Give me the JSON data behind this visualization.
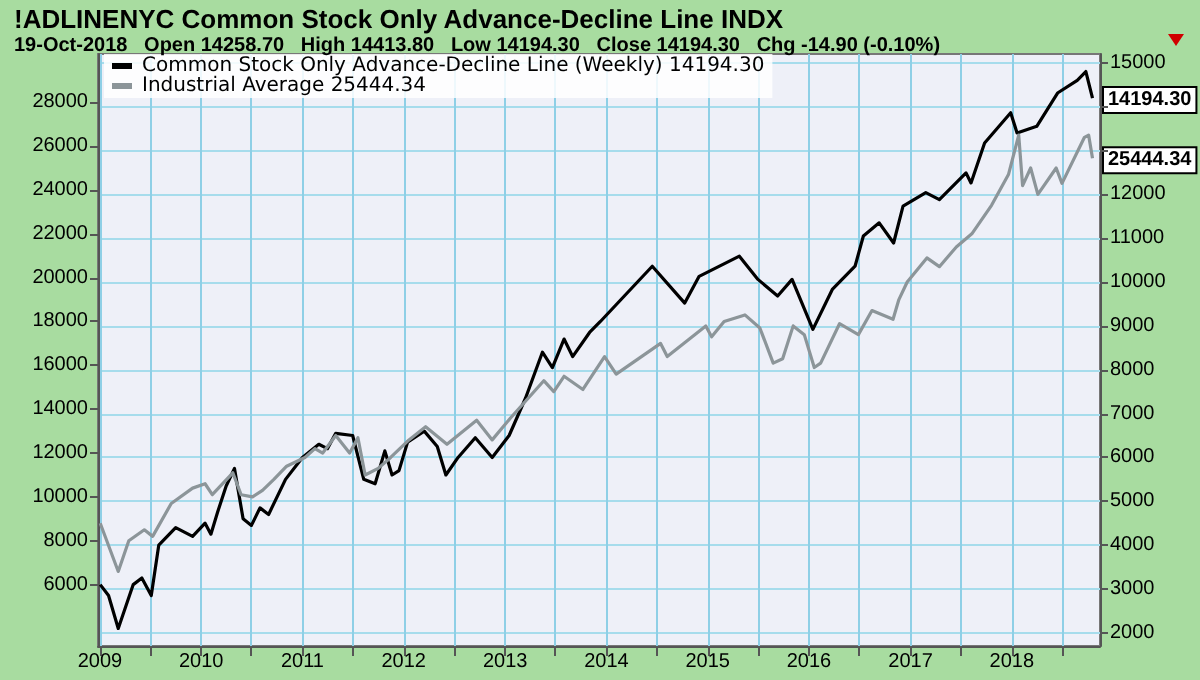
{
  "chart_data": {
    "type": "line",
    "title": "!ADLINENYC Common Stock Only Advance-Decline Line INDX",
    "subtitle": "19-Oct-2018   Open 14258.70   High 14413.80   Low 14194.30   Close 14194.30   Chg -14.90 (-0.10%)",
    "series": [
      {
        "name": "Common Stock Only Advance-Decline Line (Weekly) 14194.30",
        "color": "#000000",
        "axis": "y2",
        "x": [
          "2009-01-02",
          "2009-02-01",
          "2009-03-08",
          "2009-05-01",
          "2009-06-01",
          "2009-07-05",
          "2009-08-01",
          "2009-10-01",
          "2009-12-01",
          "2010-01-15",
          "2010-02-05",
          "2010-03-01",
          "2010-04-01",
          "2010-05-01",
          "2010-06-01",
          "2010-07-01",
          "2010-08-01",
          "2010-09-01",
          "2010-11-01",
          "2011-01-01",
          "2011-03-01",
          "2011-04-01",
          "2011-05-01",
          "2011-07-01",
          "2011-08-10",
          "2011-09-20",
          "2011-10-25",
          "2011-11-20",
          "2011-12-15",
          "2012-01-15",
          "2012-03-15",
          "2012-05-01",
          "2012-06-01",
          "2012-07-15",
          "2012-09-15",
          "2012-11-15",
          "2013-01-15",
          "2013-03-15",
          "2013-05-15",
          "2013-06-20",
          "2013-08-01",
          "2013-09-01",
          "2013-11-01",
          "2013-12-10",
          "2014-06-15",
          "2014-10-10",
          "2014-12-01",
          "2015-04-25",
          "2015-07-01",
          "2015-09-10",
          "2015-11-01",
          "2016-01-15",
          "2016-03-25",
          "2016-06-15",
          "2016-07-15",
          "2016-09-10",
          "2016-11-01",
          "2016-12-05",
          "2017-02-25",
          "2017-04-15",
          "2017-07-20",
          "2017-08-07",
          "2017-09-25",
          "2017-12-28",
          "2018-01-20",
          "2018-04-01",
          "2018-06-15",
          "2018-08-25",
          "2018-09-25",
          "2018-10-19"
        ],
        "values": [
          3100,
          2850,
          2100,
          3100,
          3250,
          2850,
          4000,
          4400,
          4200,
          4500,
          4250,
          4750,
          5350,
          5750,
          4600,
          4450,
          4850,
          4700,
          5500,
          6000,
          6300,
          6200,
          6550,
          6500,
          5500,
          5400,
          6150,
          5600,
          5700,
          6350,
          6600,
          6250,
          5600,
          6000,
          6450,
          6000,
          6500,
          7350,
          8400,
          8050,
          8700,
          8300,
          8850,
          9100,
          10360,
          9520,
          10130,
          10590,
          10060,
          9680,
          10060,
          8920,
          9830,
          10360,
          11050,
          11350,
          10890,
          11730,
          12040,
          11880,
          12490,
          12260,
          13170,
          13860,
          13400,
          13550,
          14310,
          14600,
          14800,
          14194.3
        ]
      },
      {
        "name": "Industrial Average 25444.34",
        "color": "#8c9599",
        "x": [
          "2009-01-02",
          "2009-03-08",
          "2009-04-15",
          "2009-06-10",
          "2009-07-10",
          "2009-09-15",
          "2009-12-01",
          "2010-01-15",
          "2010-02-10",
          "2010-04-25",
          "2010-05-25",
          "2010-07-05",
          "2010-08-10",
          "2010-09-20",
          "2010-11-05",
          "2011-01-10",
          "2011-02-15",
          "2011-03-15",
          "2011-05-01",
          "2011-06-20",
          "2011-07-20",
          "2011-08-15",
          "2011-10-01",
          "2011-11-15",
          "2012-01-20",
          "2012-03-20",
          "2012-06-05",
          "2012-09-20",
          "2012-11-15",
          "2013-01-20",
          "2013-05-20",
          "2013-06-25",
          "2013-08-01",
          "2013-10-08",
          "2013-12-25",
          "2014-02-05",
          "2014-07-15",
          "2014-08-08",
          "2014-12-25",
          "2015-01-15",
          "2015-03-01",
          "2015-05-15",
          "2015-07-08",
          "2015-08-25",
          "2015-09-28",
          "2015-11-05",
          "2015-12-15",
          "2016-01-20",
          "2016-02-12",
          "2016-04-20",
          "2016-06-27",
          "2016-08-15",
          "2016-10-30",
          "2016-11-20",
          "2016-12-20",
          "2017-03-01",
          "2017-04-15",
          "2017-06-15",
          "2017-08-10",
          "2017-10-20",
          "2017-12-20",
          "2018-01-26",
          "2018-02-09",
          "2018-03-10",
          "2018-04-05",
          "2018-06-10",
          "2018-07-01",
          "2018-09-20",
          "2018-10-05",
          "2018-10-19"
        ],
        "values": [
          8800,
          6600,
          8000,
          8500,
          8200,
          9700,
          10400,
          10600,
          10100,
          11100,
          10100,
          10000,
          10300,
          10800,
          11400,
          11800,
          12200,
          12000,
          12800,
          12000,
          12700,
          11000,
          11300,
          11800,
          12600,
          13200,
          12400,
          13500,
          12600,
          13600,
          15300,
          14800,
          15500,
          14900,
          16400,
          15600,
          17000,
          16400,
          17800,
          17300,
          18000,
          18300,
          17700,
          16100,
          16300,
          17800,
          17400,
          15900,
          16100,
          17900,
          17400,
          18500,
          18100,
          19000,
          19800,
          20900,
          20500,
          21400,
          22000,
          23300,
          24700,
          26500,
          24200,
          25000,
          23800,
          25000,
          24300,
          26400,
          26500,
          25444.34
        ]
      }
    ],
    "xlim": [
      "2008-12-25",
      "2018-11-15"
    ],
    "xticks": [
      {
        "value": "2009-01-01",
        "label": "2009"
      },
      {
        "value": "2009-07-01",
        "label": null
      },
      {
        "value": "2010-01-01",
        "label": "2010"
      },
      {
        "value": "2010-07-01",
        "label": null
      },
      {
        "value": "2011-01-01",
        "label": "2011"
      },
      {
        "value": "2011-07-01",
        "label": null
      },
      {
        "value": "2012-01-01",
        "label": "2012"
      },
      {
        "value": "2012-07-01",
        "label": null
      },
      {
        "value": "2013-01-01",
        "label": "2013"
      },
      {
        "value": "2013-07-01",
        "label": null
      },
      {
        "value": "2014-01-01",
        "label": "2014"
      },
      {
        "value": "2014-07-01",
        "label": null
      },
      {
        "value": "2015-01-01",
        "label": "2015"
      },
      {
        "value": "2015-07-01",
        "label": null
      },
      {
        "value": "2016-01-01",
        "label": "2016"
      },
      {
        "value": "2016-07-01",
        "label": null
      },
      {
        "value": "2017-01-01",
        "label": "2017"
      },
      {
        "value": "2017-07-01",
        "label": null
      },
      {
        "value": "2018-01-01",
        "label": "2018"
      },
      {
        "value": "2018-07-01",
        "label": null
      }
    ],
    "ylim": [
      3200,
      30200
    ],
    "yticks": [
      6000,
      8000,
      10000,
      12000,
      14000,
      16000,
      18000,
      20000,
      22000,
      24000,
      26000,
      28000
    ],
    "y2lim": [
      1700,
      15200
    ],
    "y2ticks": [
      2000,
      3000,
      4000,
      5000,
      6000,
      7000,
      8000,
      9000,
      10000,
      11000,
      12000,
      {
        "value": 13000,
        "label": null
      },
      {
        "value": 14000,
        "label": null
      },
      15000
    ],
    "annotations": [
      "14194.30",
      "25444.34"
    ],
    "grid": true,
    "legend": "top left"
  }
}
